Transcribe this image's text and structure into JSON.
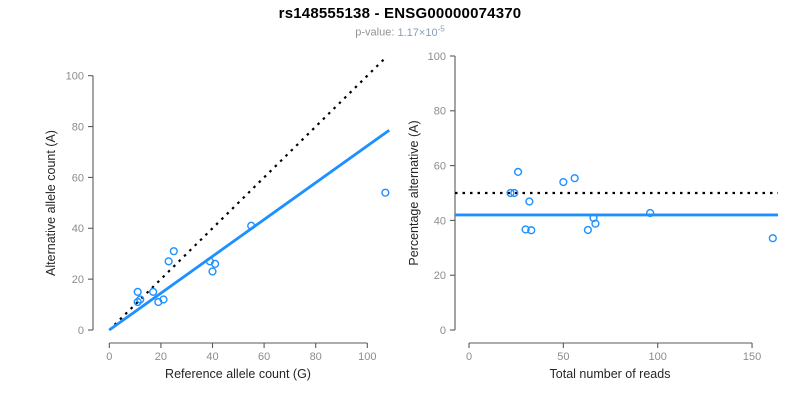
{
  "header": {
    "title": "rs148555138 - ENSG00000074370",
    "pvalue_label": "p-value:",
    "pvalue_mantissa": "1.17",
    "pvalue_times": "×10",
    "pvalue_exponent": "-5"
  },
  "colors": {
    "accent_blue": "#1E90FF",
    "reference_black": "#000000",
    "axis_line": "#595959",
    "tick_label": "#8c8c8c",
    "axis_title": "#262626",
    "subtitle_gray": "#929292"
  },
  "chart_data": [
    {
      "type": "scatter",
      "panel": "left",
      "xlabel": "Reference allele count (G)",
      "ylabel": "Alternative allele count (A)",
      "xlim": [
        0,
        108
      ],
      "ylim": [
        0,
        107
      ],
      "xticks": [
        0,
        20,
        40,
        60,
        80,
        100
      ],
      "yticks": [
        0,
        20,
        40,
        60,
        80,
        100
      ],
      "grid": false,
      "points": [
        [
          11,
          11
        ],
        [
          12,
          12
        ],
        [
          11,
          15
        ],
        [
          19,
          11
        ],
        [
          17,
          15
        ],
        [
          21,
          12
        ],
        [
          23,
          27
        ],
        [
          25,
          31
        ],
        [
          40,
          23
        ],
        [
          39,
          27
        ],
        [
          41,
          26
        ],
        [
          55,
          41
        ],
        [
          107,
          54
        ]
      ],
      "lines": [
        {
          "name": "identity-line",
          "style": "dotted",
          "color": "#000000",
          "slope": 1,
          "intercept": 0,
          "x_from": 0,
          "x_to": 108.5
        },
        {
          "name": "fit-line",
          "style": "solid",
          "color": "#1E90FF",
          "slope": 0.724,
          "intercept": 0,
          "x_from": 0,
          "x_to": 108.5
        }
      ]
    },
    {
      "type": "scatter",
      "panel": "right",
      "xlabel": "Total number of reads",
      "ylabel": "Percentage alternative (A)",
      "xlim": [
        0,
        161
      ],
      "ylim": [
        0,
        100
      ],
      "xticks": [
        0,
        50,
        100,
        150
      ],
      "yticks": [
        0,
        20,
        40,
        60,
        80,
        100
      ],
      "grid": false,
      "points": [
        [
          22,
          50
        ],
        [
          24,
          50
        ],
        [
          26,
          57.7
        ],
        [
          30,
          36.7
        ],
        [
          32,
          46.9
        ],
        [
          33,
          36.4
        ],
        [
          50,
          54
        ],
        [
          56,
          55.4
        ],
        [
          63,
          36.5
        ],
        [
          66,
          40.9
        ],
        [
          67,
          38.8
        ],
        [
          96,
          42.7
        ],
        [
          161,
          33.5
        ]
      ],
      "lines": [
        {
          "name": "expected-50pct-line",
          "style": "dotted",
          "color": "#000000",
          "y": 50
        },
        {
          "name": "observed-mean-line",
          "style": "solid",
          "color": "#1E90FF",
          "y": 42
        }
      ]
    }
  ]
}
